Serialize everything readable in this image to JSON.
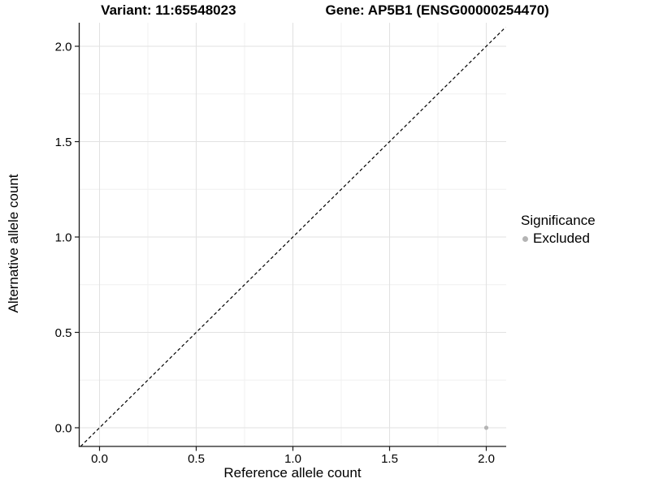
{
  "title": {
    "variant": "Variant: 11:65548023",
    "gene": "Gene: AP5B1 (ENSG00000254470)"
  },
  "axes": {
    "x_label": "Reference allele count",
    "y_label": "Alternative allele count"
  },
  "legend": {
    "title": "Significance",
    "items": [
      {
        "label": "Excluded",
        "color": "#b4b4b4"
      }
    ]
  },
  "colors": {
    "background": "#ffffff",
    "axis_line": "#1a1a1a",
    "grid_major": "#e2e2e2",
    "grid_minor": "#f0f0f0",
    "reference_line": "#000000",
    "point": "#b4b4b4",
    "text": "#000000"
  },
  "chart_data": {
    "type": "scatter",
    "title": "Variant: 11:65548023    Gene: AP5B1 (ENSG00000254470)",
    "xlabel": "Reference allele count",
    "ylabel": "Alternative allele count",
    "xlim": [
      -0.1,
      2.1
    ],
    "ylim": [
      -0.1,
      2.1
    ],
    "x_ticks": [
      0.0,
      0.5,
      1.0,
      1.5,
      2.0
    ],
    "y_ticks": [
      0.0,
      0.5,
      1.0,
      1.5,
      2.0
    ],
    "x_tick_labels": [
      "0.0",
      "0.5",
      "1.0",
      "1.5",
      "2.0"
    ],
    "y_tick_labels": [
      "0.0",
      "0.5",
      "1.0",
      "1.5",
      "2.0"
    ],
    "grid": "major+minor",
    "legend_position": "right",
    "legend_title": "Significance",
    "series": [
      {
        "name": "Excluded",
        "color": "#b4b4b4",
        "points": [
          {
            "x": 2.0,
            "y": 0.0
          }
        ]
      }
    ],
    "reference_line": {
      "type": "identity",
      "slope": 1,
      "intercept": 0,
      "style": "dashed",
      "color": "#000000"
    }
  }
}
